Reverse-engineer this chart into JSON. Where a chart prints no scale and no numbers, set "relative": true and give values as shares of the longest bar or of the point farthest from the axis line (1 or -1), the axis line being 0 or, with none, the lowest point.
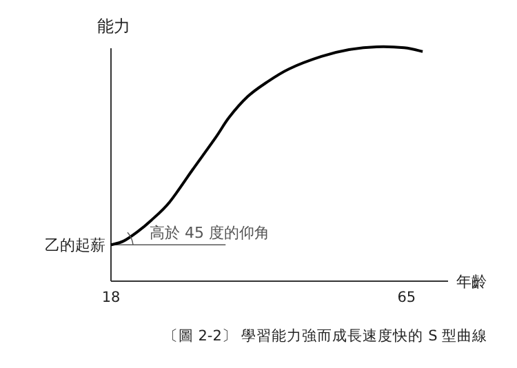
{
  "chart_data": {
    "type": "line",
    "relative": true,
    "xlabel": "年齡",
    "ylabel": "能力",
    "xlim": [
      18,
      71.6
    ],
    "xticks": [
      18,
      65
    ],
    "series": [
      {
        "color": "#000000",
        "x": [
          18,
          19.98,
          22.17,
          24.37,
          27.3,
          30.96,
          34.62,
          36.81,
          39.74,
          42.67,
          46.33,
          51.46,
          55.85,
          60.24,
          64.63,
          67.56
        ],
        "values": [
          0.155,
          0.171,
          0.21,
          0.259,
          0.337,
          0.475,
          0.612,
          0.7,
          0.788,
          0.847,
          0.906,
          0.959,
          0.988,
          1,
          0.996,
          0.98
        ]
      }
    ],
    "ref_lines": [
      {
        "axis": "y",
        "value": 0.155,
        "label": "乙的起薪",
        "color": "#555555"
      }
    ],
    "annotations": [
      {
        "text": "高於 45 度的仰角",
        "x": 18,
        "y": 0.155
      },
      "〔圖 2-2〕 學習能力強而成長速度快的 S 型曲線"
    ],
    "line_style": "solid",
    "grid": false
  }
}
